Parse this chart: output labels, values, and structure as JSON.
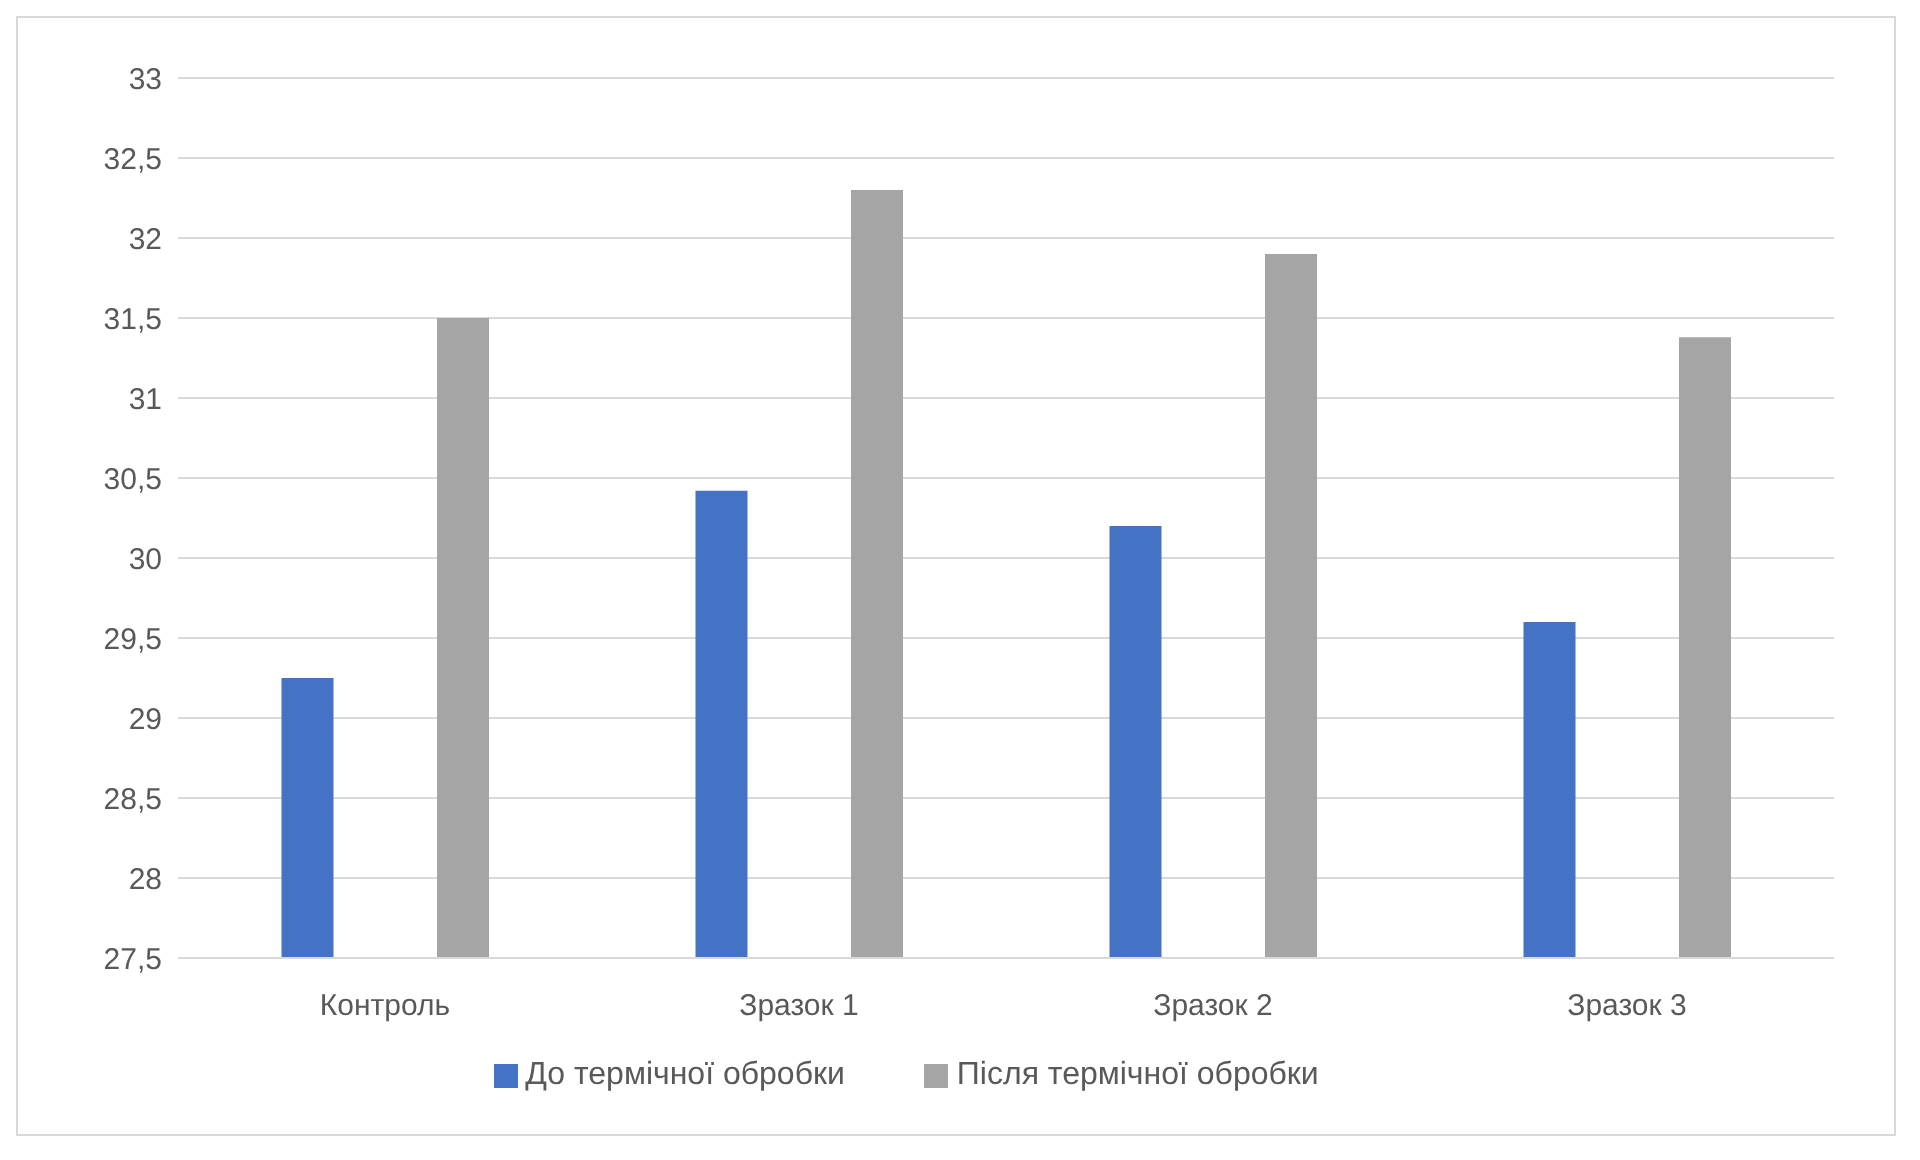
{
  "chart_data": {
    "type": "bar",
    "categories": [
      "Контроль",
      "Зразок 1",
      "Зразок 2",
      "Зразок 3"
    ],
    "series": [
      {
        "name": "До термічної обробки",
        "color": "#4472c4",
        "values": [
          29.25,
          30.42,
          30.2,
          29.6
        ]
      },
      {
        "name": "Після термічної обробки",
        "color": "#a5a5a5",
        "values": [
          31.5,
          32.3,
          31.9,
          31.38
        ]
      }
    ],
    "ylim": [
      27.5,
      33
    ],
    "yticks": [
      {
        "value": 27.5,
        "label": "27,5"
      },
      28,
      {
        "value": 28.5,
        "label": "28,5"
      },
      29,
      {
        "value": 29.5,
        "label": "29,5"
      },
      30,
      {
        "value": 30.5,
        "label": "30,5"
      },
      31,
      {
        "value": 31.5,
        "label": "31,5"
      },
      32,
      {
        "value": 32.5,
        "label": "32,5"
      },
      33
    ],
    "grid": "y",
    "legend": "bottom"
  }
}
